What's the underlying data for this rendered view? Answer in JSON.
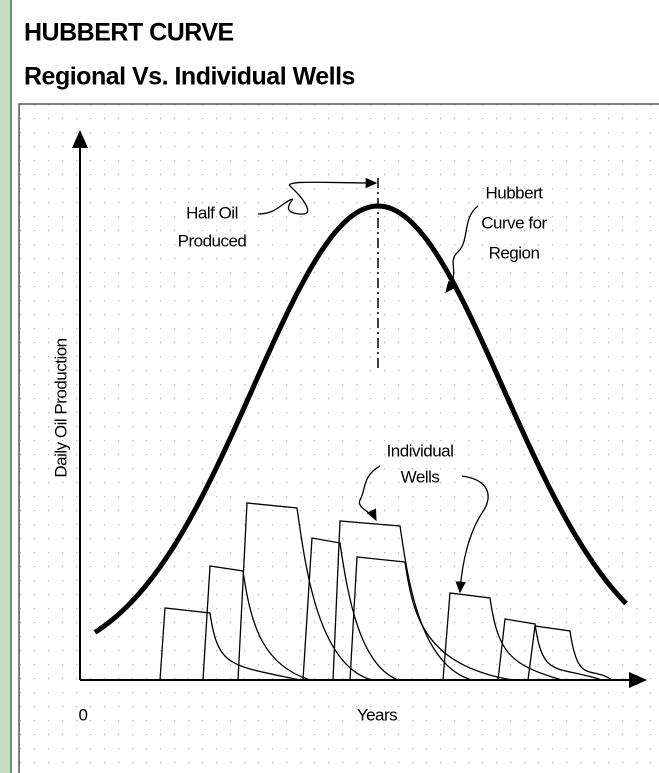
{
  "header": {
    "title": "HUBBERT CURVE",
    "subtitle": "Regional Vs. Individual Wells"
  },
  "diagram": {
    "y_axis_label": "Daily Oil Production",
    "x_axis_label": "Years",
    "origin_label": "0",
    "annotations": [
      {
        "lines": [
          "Half Oil",
          "Produced"
        ]
      },
      {
        "lines": [
          "Hubbert",
          "Curve for",
          "Region"
        ]
      },
      {
        "lines": [
          "Individual",
          "Wells"
        ]
      }
    ]
  }
}
